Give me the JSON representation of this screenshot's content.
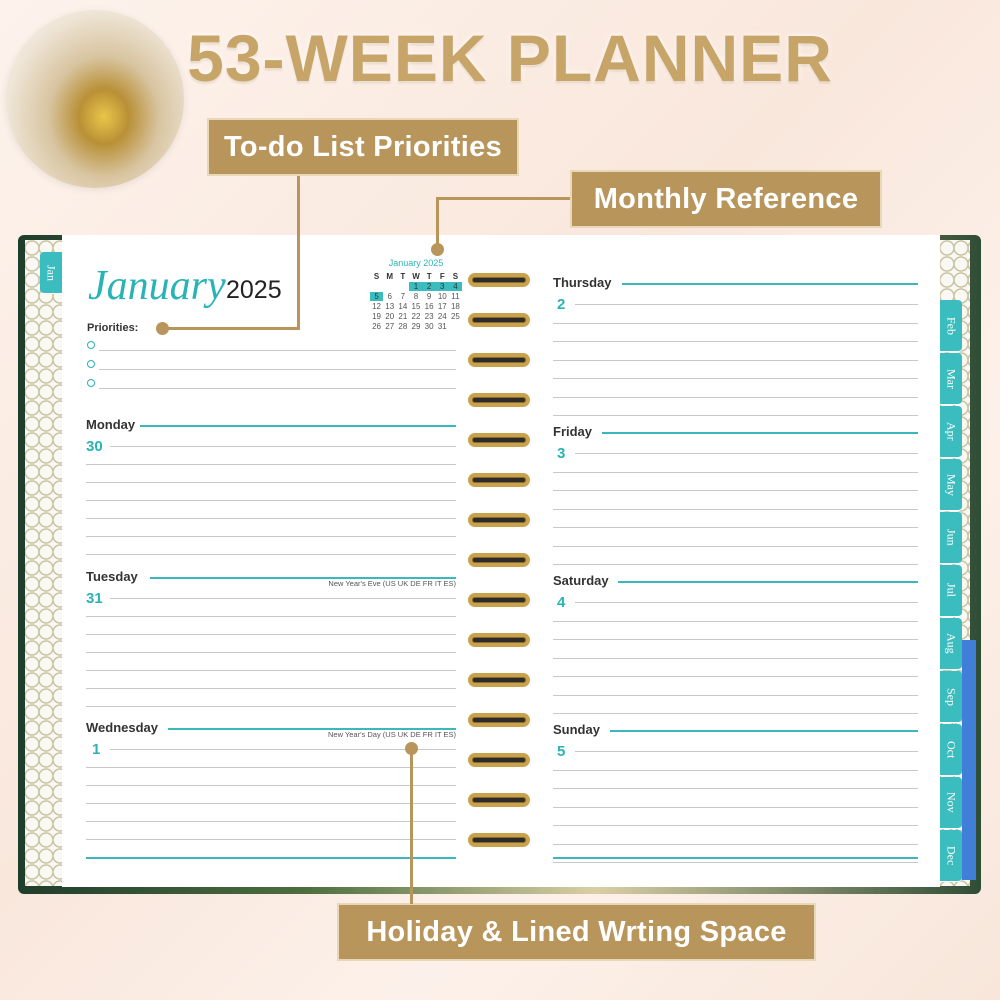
{
  "headline": "53-WEEK PLANNER",
  "callouts": {
    "priorities": "To-do List Priorities",
    "monthly": "Monthly Reference",
    "holiday": "Holiday & Lined Wrting Space"
  },
  "colors": {
    "gold": "#b8955a",
    "teal": "#2ab3b5",
    "cover": "#1f3d2c"
  },
  "left_page": {
    "tab": "Jan",
    "month": "January",
    "year": "2025",
    "priorities_label": "Priorities:",
    "mini_calendar": {
      "title": "January  2025",
      "weekdays": [
        "S",
        "M",
        "T",
        "W",
        "T",
        "F",
        "S"
      ],
      "days": [
        "",
        "",
        "",
        "1",
        "2",
        "3",
        "4",
        "5",
        "6",
        "7",
        "8",
        "9",
        "10",
        "11",
        "12",
        "13",
        "14",
        "15",
        "16",
        "17",
        "18",
        "19",
        "20",
        "21",
        "22",
        "23",
        "24",
        "25",
        "26",
        "27",
        "28",
        "29",
        "30",
        "31",
        ""
      ],
      "highlighted": [
        "1",
        "2",
        "3",
        "4",
        "5"
      ]
    },
    "days": [
      {
        "name": "Monday",
        "date": "30",
        "holiday": ""
      },
      {
        "name": "Tuesday",
        "date": "31",
        "holiday": "New Year's Eve (US UK DE FR IT ES)"
      },
      {
        "name": "Wednesday",
        "date": "1",
        "holiday": "New Year's Day (US UK DE FR IT ES)"
      }
    ]
  },
  "right_page": {
    "days": [
      {
        "name": "Thursday",
        "date": "2"
      },
      {
        "name": "Friday",
        "date": "3"
      },
      {
        "name": "Saturday",
        "date": "4"
      },
      {
        "name": "Sunday",
        "date": "5"
      }
    ],
    "tabs": [
      "Feb",
      "Mar",
      "Apr",
      "May",
      "Jun",
      "Jul",
      "Aug",
      "Sep",
      "Oct",
      "Nov",
      "Dec"
    ]
  }
}
